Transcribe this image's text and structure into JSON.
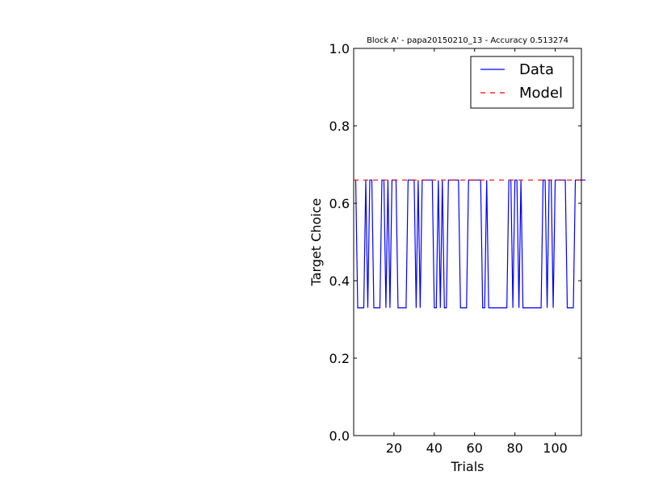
{
  "chart_data": {
    "type": "line",
    "title": "Block A' - papa20150210_13 - Accuracy 0.513274",
    "xlabel": "Trials",
    "ylabel": "Target Choice",
    "xlim": [
      0,
      113
    ],
    "ylim": [
      0.0,
      1.0
    ],
    "xticks": [
      20,
      40,
      60,
      80,
      100
    ],
    "xtick_labels": [
      "20",
      "40",
      "60",
      "80",
      "100"
    ],
    "yticks": [
      0.0,
      0.2,
      0.4,
      0.6,
      0.8,
      1.0
    ],
    "ytick_labels": [
      "0.0",
      "0.2",
      "0.4",
      "0.6",
      "0.8",
      "1.0"
    ],
    "grid": false,
    "legend_position": "top-right",
    "high_value": 0.66,
    "low_value": 0.33,
    "series": [
      {
        "name": "Data",
        "color": "#0000ff",
        "style": "solid",
        "pattern": "HLLLLHLHHLLLLHHLHLHHHLLLLLHHHHLHLHHHHHHLLHLHLLHHHHHHLLLLHHHHHHHLLHLLLLLLLLLLHHLHHLHLLLLLLLLLLHHLHHLHHHHHHLLLLHHHHHH"
      },
      {
        "name": "Model",
        "color": "#ff0000",
        "style": "dashed",
        "constant": 0.66
      }
    ]
  }
}
